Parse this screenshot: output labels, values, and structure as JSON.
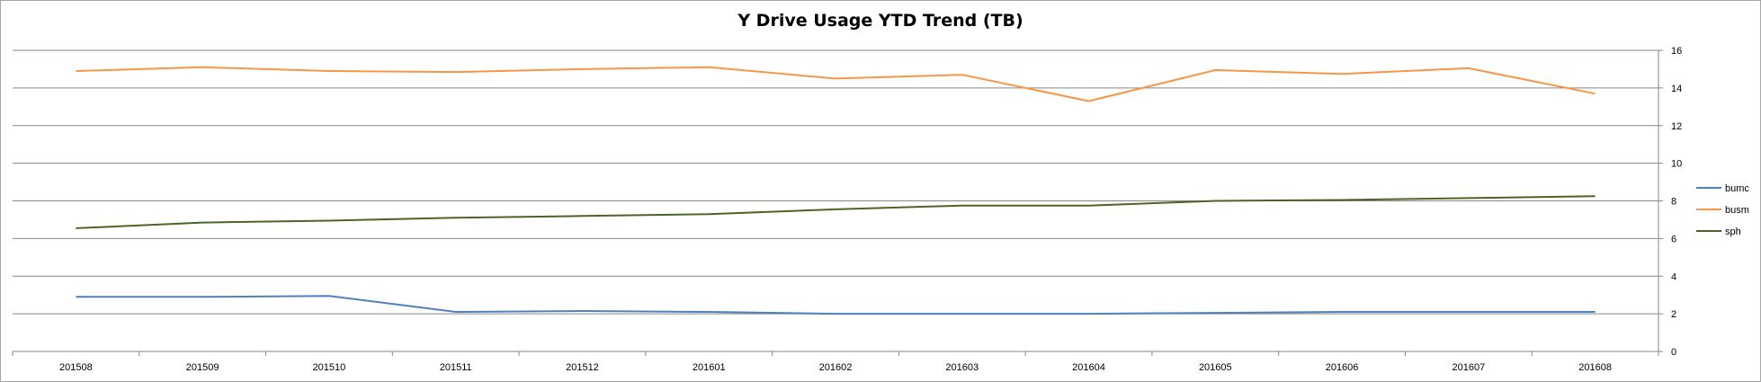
{
  "chart_data": {
    "type": "line",
    "title": "Y Drive Usage YTD Trend (TB)",
    "xlabel": "",
    "ylabel": "",
    "categories": [
      "201508",
      "201509",
      "201510",
      "201511",
      "201512",
      "201601",
      "201602",
      "201603",
      "201604",
      "201605",
      "201606",
      "201607",
      "201608"
    ],
    "ylim": [
      0,
      16
    ],
    "yticks": [
      0,
      2,
      4,
      6,
      8,
      10,
      12,
      14,
      16
    ],
    "y_axis_side": "right",
    "grid": true,
    "legend_position": "right",
    "series": [
      {
        "name": "bumc",
        "color": "#4f81bd",
        "values": [
          2.9,
          2.9,
          2.95,
          2.1,
          2.15,
          2.1,
          2.0,
          2.0,
          2.0,
          2.05,
          2.1,
          2.1,
          2.1
        ]
      },
      {
        "name": "busm",
        "color": "#f79646",
        "values": [
          14.9,
          15.1,
          14.9,
          14.85,
          15.0,
          15.1,
          14.5,
          14.7,
          13.3,
          14.95,
          14.75,
          15.05,
          13.7
        ]
      },
      {
        "name": "sph",
        "color": "#4f6228",
        "values": [
          6.55,
          6.85,
          6.95,
          7.1,
          7.2,
          7.3,
          7.55,
          7.75,
          7.75,
          8.0,
          8.05,
          8.15,
          8.25
        ]
      }
    ]
  }
}
